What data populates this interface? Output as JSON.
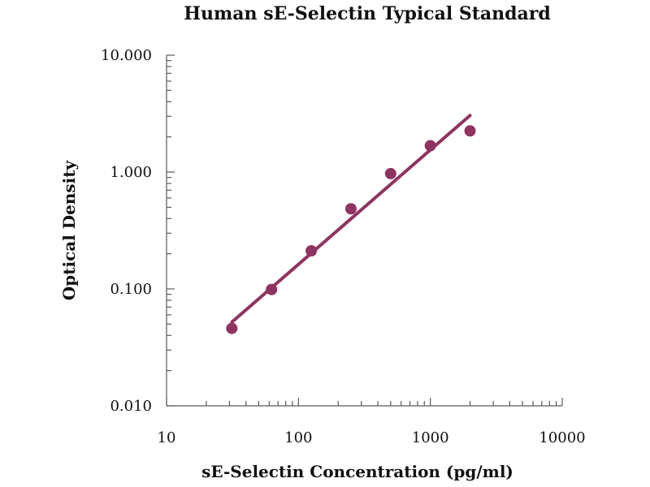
{
  "colors": {
    "series": "#8e3460",
    "axis": "#5a5a5a",
    "text": "#111111",
    "background": "#ffffff"
  },
  "chart_data": {
    "type": "scatter",
    "title": "Human sE-Selectin Typical Standard",
    "xlabel": "sE-Selectin Concentration (pg/ml)",
    "ylabel": "Optical Density",
    "xscale": "log",
    "yscale": "log",
    "xlim": [
      10,
      10000
    ],
    "ylim": [
      0.01,
      10
    ],
    "x_ticks": [
      10,
      100,
      1000,
      10000
    ],
    "x_tick_labels": [
      "10",
      "100",
      "1000",
      "10000"
    ],
    "y_ticks": [
      0.01,
      0.1,
      1,
      10
    ],
    "y_tick_labels": [
      "0.010",
      "0.100",
      "1.000",
      "10.000"
    ],
    "grid": false,
    "series": [
      {
        "type": "scatter",
        "x": [
          31.25,
          62.5,
          125,
          250,
          500,
          1000,
          2000
        ],
        "y": [
          0.046,
          0.099,
          0.212,
          0.485,
          0.97,
          1.68,
          2.25
        ]
      },
      {
        "type": "line",
        "x": [
          31.25,
          2000
        ],
        "y": [
          0.052,
          3.05
        ]
      }
    ]
  }
}
